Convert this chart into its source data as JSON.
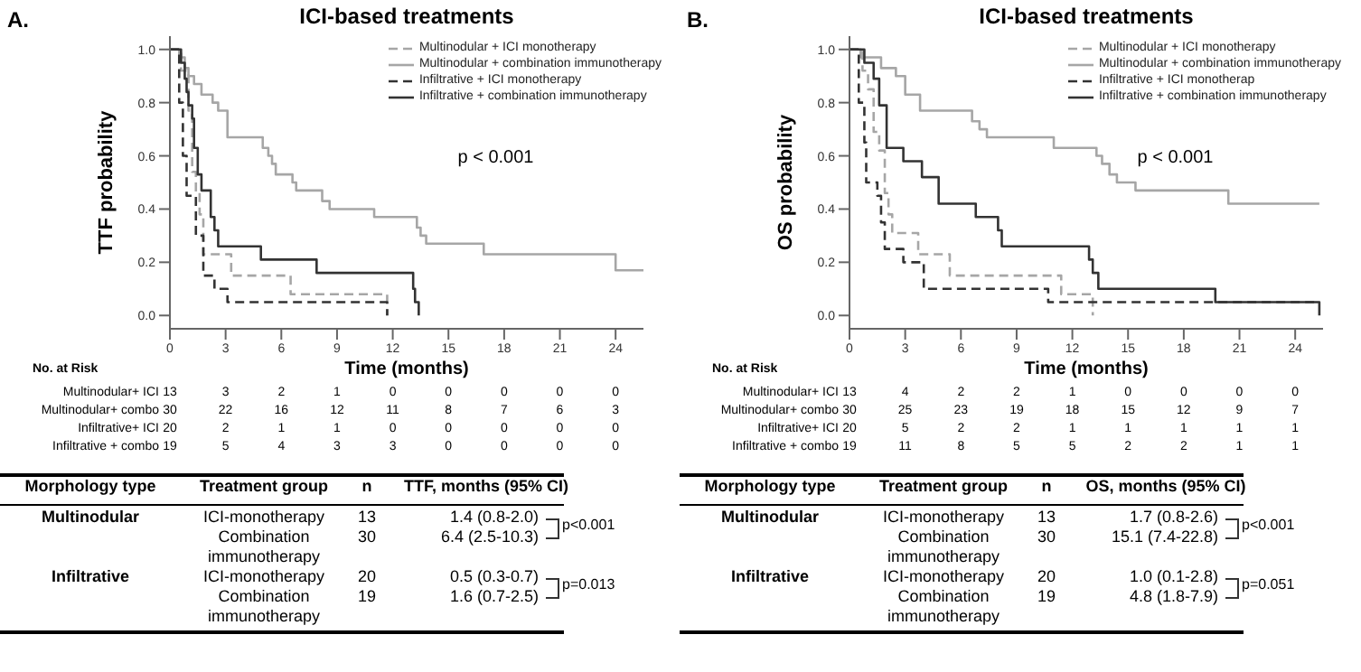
{
  "chart_data": [
    {
      "type": "step",
      "title": "ICI-based treatments",
      "xlabel": "Time (months)",
      "ylabel": "TTF probability",
      "xlim": [
        0,
        25.5
      ],
      "xticks": [
        0,
        3,
        6,
        9,
        12,
        15,
        18,
        21,
        24
      ],
      "ylim": [
        -0.05,
        1.05
      ],
      "yticks": [
        {
          "value": 0,
          "label": "0.0"
        },
        {
          "value": 0.2,
          "label": "0.2"
        },
        {
          "value": 0.4,
          "label": "0.4"
        },
        {
          "value": 0.6,
          "label": "0.6"
        },
        {
          "value": 0.8,
          "label": "0.8"
        },
        {
          "value": 1,
          "label": "1.0"
        }
      ],
      "legend": "top right",
      "series": [
        {
          "name": "Multinodular + ICI monotherapy",
          "color": "#a6a6a6",
          "line_style": "dashed",
          "x": [
            0,
            0.6,
            1.0,
            1.2,
            1.4,
            1.6,
            1.8,
            3.3,
            6.5,
            11.7
          ],
          "values": [
            1,
            0.92,
            0.77,
            0.54,
            0.46,
            0.38,
            0.23,
            0.15,
            0.08,
            0
          ]
        },
        {
          "name": "Multinodular + combination immunotherapy",
          "color": "#a6a6a6",
          "line_style": "solid",
          "x": [
            0,
            0.5,
            0.8,
            1.0,
            1.3,
            1.7,
            2.3,
            2.6,
            3.1,
            5.0,
            5.3,
            5.5,
            5.7,
            6.6,
            6.8,
            8.2,
            8.6,
            11.0,
            13.3,
            13.5,
            13.8,
            16.9,
            24.0,
            25.5
          ],
          "values": [
            1,
            0.97,
            0.93,
            0.9,
            0.87,
            0.83,
            0.8,
            0.77,
            0.67,
            0.63,
            0.6,
            0.57,
            0.53,
            0.5,
            0.47,
            0.43,
            0.4,
            0.37,
            0.33,
            0.3,
            0.27,
            0.23,
            0.17,
            0.17
          ]
        },
        {
          "name": "Infiltrative + ICI monotherapy",
          "color": "#333333",
          "line_style": "dashed",
          "x": [
            0,
            0.5,
            0.7,
            0.9,
            1.4,
            1.8,
            2.4,
            3.1,
            11.7
          ],
          "values": [
            1,
            0.8,
            0.6,
            0.45,
            0.3,
            0.15,
            0.1,
            0.05,
            0
          ]
        },
        {
          "name": "Infiltrative + combination immunotherapy",
          "color": "#333333",
          "line_style": "solid",
          "x": [
            0,
            0.6,
            0.8,
            0.9,
            1.0,
            1.2,
            1.3,
            1.5,
            1.7,
            2.2,
            2.4,
            2.6,
            4.9,
            7.9,
            13.1,
            13.2,
            13.4
          ],
          "values": [
            1,
            0.95,
            0.89,
            0.84,
            0.79,
            0.74,
            0.63,
            0.53,
            0.47,
            0.37,
            0.32,
            0.26,
            0.21,
            0.16,
            0.1,
            0.05,
            0
          ]
        }
      ],
      "annotations": [
        "A.",
        "p < 0.001",
        "No. at Risk",
        "Multinodular+ ICI 13 3 2 1 0 0 0 0 0",
        "Multinodular+ combo 30 22 16 12 11 8 7 6 3",
        "Infiltrative+ ICI 20 2 1 1 0 0 0 0 0",
        "Infiltrative + combo 19 5 4 3 3 0 0 0 0",
        "Morphology type",
        "Treatment group",
        "n",
        "TTF, months (95% CI)",
        "Multinodular",
        "ICI-monotherapy",
        "13",
        "1.4 (0.8-2.0)",
        "Combination immunotherapy",
        "30",
        "6.4 (2.5-10.3)",
        "p<0.001",
        "Infiltrative",
        "ICI-monotherapy",
        "20",
        "0.5 (0.3-0.7)",
        "Combination immunotherapy",
        "19",
        "1.6 (0.7-2.5)",
        "p=0.013"
      ]
    },
    {
      "type": "step",
      "title": "ICI-based treatments",
      "xlabel": "Time (months)",
      "ylabel": "OS probability",
      "xlim": [
        0,
        25.5
      ],
      "xticks": [
        0,
        3,
        6,
        9,
        12,
        15,
        18,
        21,
        24
      ],
      "ylim": [
        -0.05,
        1.05
      ],
      "yticks": [
        {
          "value": 0,
          "label": "0.0"
        },
        {
          "value": 0.2,
          "label": "0.2"
        },
        {
          "value": 0.4,
          "label": "0.4"
        },
        {
          "value": 0.6,
          "label": "0.6"
        },
        {
          "value": 0.8,
          "label": "0.8"
        },
        {
          "value": 1,
          "label": "1.0"
        }
      ],
      "legend": "top right",
      "series": [
        {
          "name": "Multinodular + ICI monotherapy",
          "color": "#a6a6a6",
          "line_style": "dashed",
          "x": [
            0,
            0.7,
            1.0,
            1.3,
            1.6,
            1.9,
            2.1,
            2.3,
            3.7,
            5.4,
            11.4,
            13.1
          ],
          "values": [
            1,
            0.92,
            0.85,
            0.69,
            0.62,
            0.46,
            0.38,
            0.31,
            0.23,
            0.15,
            0.08,
            0
          ]
        },
        {
          "name": "Multinodular + combination immunotherapy",
          "color": "#a6a6a6",
          "line_style": "solid",
          "x": [
            0,
            0.6,
            1.7,
            2.5,
            3.0,
            3.8,
            6.6,
            7.0,
            7.4,
            11.0,
            13.3,
            13.6,
            14.0,
            14.4,
            15.4,
            20.4,
            25.3
          ],
          "values": [
            1,
            0.97,
            0.93,
            0.9,
            0.83,
            0.77,
            0.73,
            0.7,
            0.67,
            0.63,
            0.6,
            0.57,
            0.53,
            0.5,
            0.47,
            0.42,
            0.42
          ]
        },
        {
          "name": "Infiltrative + ICI monotherap",
          "color": "#333333",
          "line_style": "dashed",
          "x": [
            0,
            0.5,
            0.8,
            0.9,
            1.5,
            1.7,
            1.9,
            2.9,
            4.0,
            10.7,
            25.3
          ],
          "values": [
            1,
            0.8,
            0.65,
            0.5,
            0.45,
            0.35,
            0.25,
            0.2,
            0.1,
            0.05,
            0.05
          ]
        },
        {
          "name": "Infiltrative + combination immunotherapy",
          "color": "#333333",
          "line_style": "solid",
          "x": [
            0,
            0.8,
            1.3,
            1.6,
            2.0,
            2.9,
            3.9,
            4.8,
            6.8,
            8.0,
            8.2,
            12.9,
            13.1,
            13.4,
            19.7,
            25.3
          ],
          "values": [
            1,
            0.95,
            0.89,
            0.79,
            0.63,
            0.58,
            0.52,
            0.42,
            0.37,
            0.32,
            0.26,
            0.21,
            0.16,
            0.1,
            0.05,
            0
          ]
        }
      ],
      "annotations": [
        "B.",
        "p < 0.001",
        "No. at Risk",
        "Multinodular+ ICI 13 4 2 2 1 0 0 0 0",
        "Multinodular+ combo 30 25 23 19 18 15 12 9 7",
        "Infiltrative+ ICI 20 5 2 2 1 1 1 1 1",
        "Infiltrative + combo 19 11 8 5 5 2 2 1 1",
        "Morphology type",
        "Treatment group",
        "n",
        "OS, months (95% CI)",
        "Multinodular",
        "ICI-monotherapy",
        "13",
        "1.7 (0.8-2.6)",
        "Combination immunotherapy",
        "30",
        "15.1 (7.4-22.8)",
        "p<0.001",
        "Infiltrative",
        "ICI-monotherapy",
        "20",
        "1.0 (0.1-2.8)",
        "Combination immunotherapy",
        "19",
        "4.8 (1.8-7.9)",
        "p=0.051"
      ]
    }
  ]
}
